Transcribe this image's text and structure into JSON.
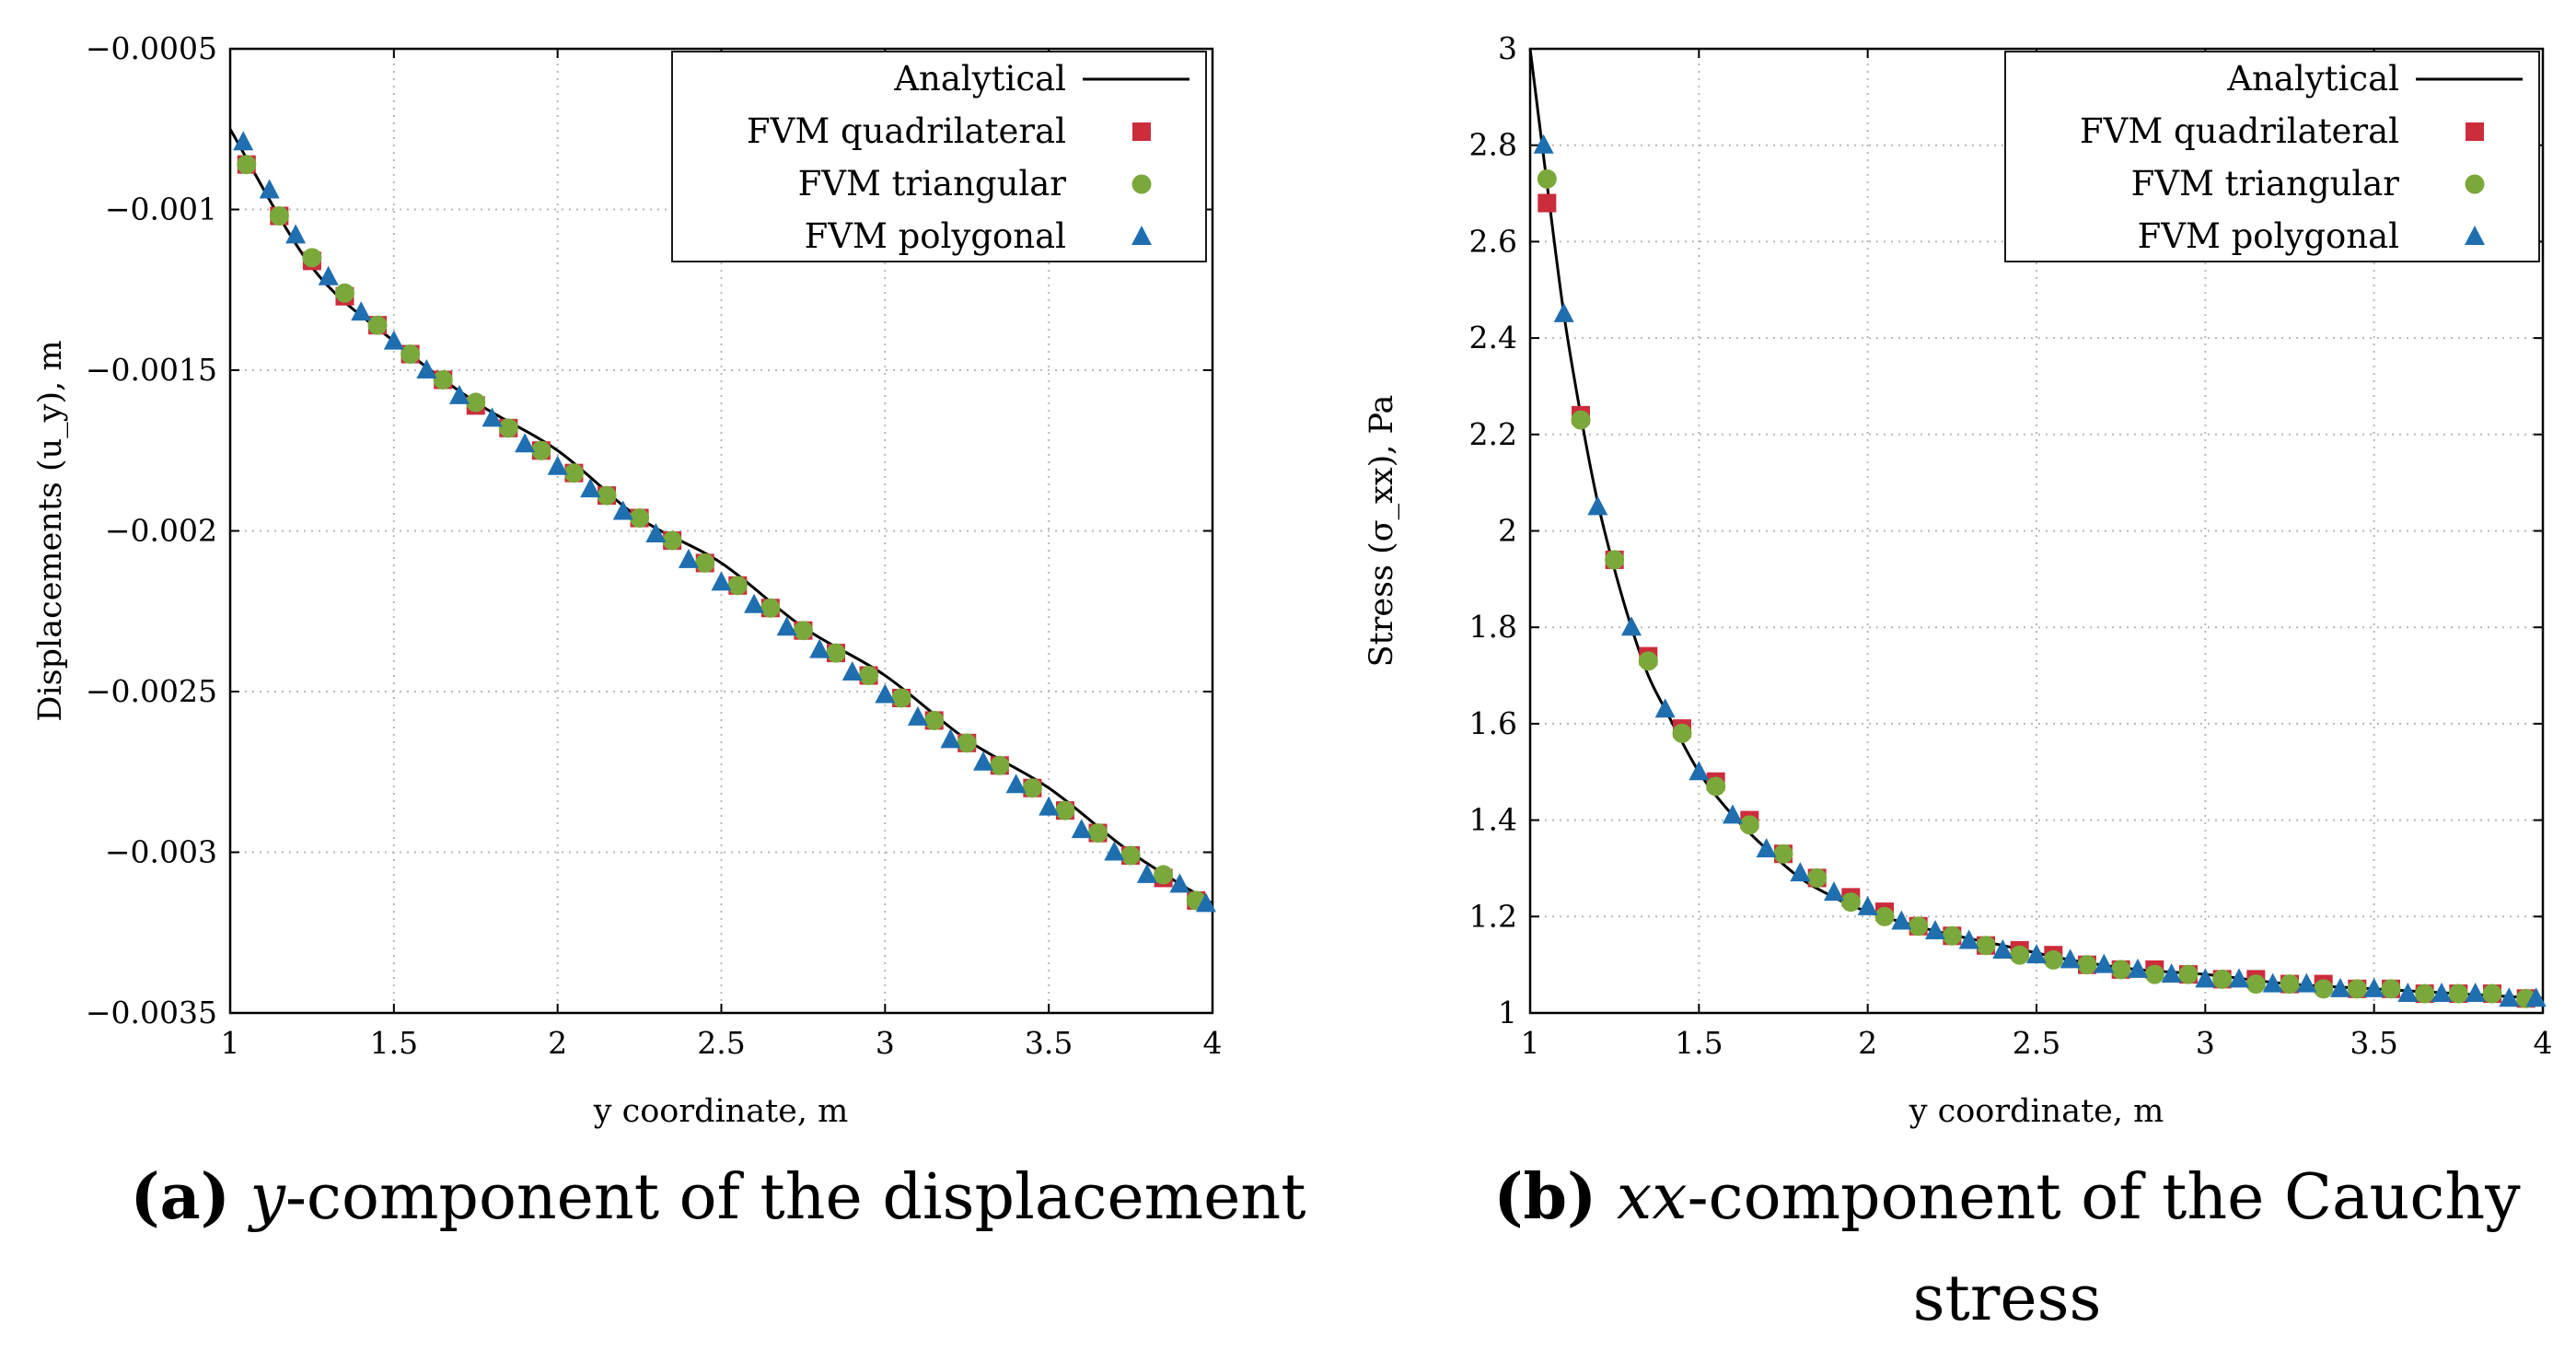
{
  "colors": {
    "analytical": "#000000",
    "quadrilateral": "#cc2c3c",
    "triangular": "#7aa83a",
    "polygonal": "#1f6fb0",
    "grid": "#b8b8b8"
  },
  "captions": {
    "a": {
      "label": "(a)",
      "italic": "y",
      "rest": "-component of the displacement"
    },
    "b": {
      "label": "(b)",
      "italic": "xx",
      "rest": "-component of the Cauchy",
      "line2": "stress"
    }
  },
  "chart_data": [
    {
      "id": "a",
      "type": "line+scatter",
      "title": "",
      "xlabel": "y coordinate, m",
      "ylabel": "Displacements (u_y), m",
      "xlim": [
        1,
        4
      ],
      "ylim": [
        -0.0035,
        -0.0005
      ],
      "xticks": [
        1,
        1.5,
        2,
        2.5,
        3,
        3.5,
        4
      ],
      "xtick_labels": [
        "1",
        "1.5",
        "2",
        "2.5",
        "3",
        "3.5",
        "4"
      ],
      "yticks": [
        -0.0005,
        -0.001,
        -0.0015,
        -0.002,
        -0.0025,
        -0.003,
        -0.0035
      ],
      "ytick_labels": [
        "−0.0005",
        "−0.001",
        "−0.0015",
        "−0.002",
        "−0.0025",
        "−0.003",
        "−0.0035"
      ],
      "grid": true,
      "legend": "top-right",
      "analytical": {
        "name": "Analytical",
        "x": [
          1,
          1.25,
          1.5,
          1.75,
          2,
          2.25,
          2.5,
          2.75,
          3,
          3.25,
          3.5,
          3.75,
          4
        ],
        "y": [
          -0.00075,
          -0.00118,
          -0.00141,
          -0.0016,
          -0.00175,
          -0.00196,
          -0.0021,
          -0.0023,
          -0.00245,
          -0.00265,
          -0.0028,
          -0.003,
          -0.00316
        ]
      },
      "series": [
        {
          "name": "FVM quadrilateral",
          "marker": "square",
          "x": [
            1.05,
            1.15,
            1.25,
            1.35,
            1.45,
            1.55,
            1.65,
            1.75,
            1.85,
            1.95,
            2.05,
            2.15,
            2.25,
            2.35,
            2.45,
            2.55,
            2.65,
            2.75,
            2.85,
            2.95,
            3.05,
            3.15,
            3.25,
            3.35,
            3.45,
            3.55,
            3.65,
            3.75,
            3.85,
            3.95
          ],
          "y": [
            -0.00086,
            -0.00102,
            -0.00116,
            -0.00127,
            -0.00136,
            -0.00145,
            -0.00153,
            -0.00161,
            -0.00168,
            -0.00175,
            -0.00182,
            -0.00189,
            -0.00196,
            -0.00203,
            -0.0021,
            -0.00217,
            -0.00224,
            -0.00231,
            -0.00238,
            -0.00245,
            -0.00252,
            -0.00259,
            -0.00266,
            -0.00273,
            -0.0028,
            -0.00287,
            -0.00294,
            -0.00301,
            -0.00308,
            -0.00315
          ]
        },
        {
          "name": "FVM triangular",
          "marker": "circle",
          "x": [
            1.05,
            1.15,
            1.25,
            1.35,
            1.45,
            1.55,
            1.65,
            1.75,
            1.85,
            1.95,
            2.05,
            2.15,
            2.25,
            2.35,
            2.45,
            2.55,
            2.65,
            2.75,
            2.85,
            2.95,
            3.05,
            3.15,
            3.25,
            3.35,
            3.45,
            3.55,
            3.65,
            3.75,
            3.85,
            3.95
          ],
          "y": [
            -0.00086,
            -0.00102,
            -0.00115,
            -0.00126,
            -0.00136,
            -0.00145,
            -0.00153,
            -0.0016,
            -0.00168,
            -0.00175,
            -0.00182,
            -0.00189,
            -0.00196,
            -0.00203,
            -0.0021,
            -0.00217,
            -0.00224,
            -0.00231,
            -0.00238,
            -0.00245,
            -0.00252,
            -0.00259,
            -0.00266,
            -0.00273,
            -0.0028,
            -0.00287,
            -0.00294,
            -0.00301,
            -0.00307,
            -0.00315
          ]
        },
        {
          "name": "FVM polygonal",
          "marker": "triangle",
          "x": [
            1.04,
            1.12,
            1.2,
            1.3,
            1.4,
            1.5,
            1.6,
            1.7,
            1.8,
            1.9,
            2.0,
            2.1,
            2.2,
            2.3,
            2.4,
            2.5,
            2.6,
            2.7,
            2.8,
            2.9,
            3.0,
            3.1,
            3.2,
            3.3,
            3.4,
            3.5,
            3.6,
            3.7,
            3.8,
            3.9,
            3.98
          ],
          "y": [
            -0.00079,
            -0.00094,
            -0.00108,
            -0.00121,
            -0.00132,
            -0.00141,
            -0.0015,
            -0.00158,
            -0.00165,
            -0.00173,
            -0.0018,
            -0.00187,
            -0.00194,
            -0.00201,
            -0.00209,
            -0.00216,
            -0.00223,
            -0.0023,
            -0.00237,
            -0.00244,
            -0.00251,
            -0.00258,
            -0.00265,
            -0.00272,
            -0.00279,
            -0.00286,
            -0.00293,
            -0.003,
            -0.00307,
            -0.0031,
            -0.00316
          ]
        }
      ]
    },
    {
      "id": "b",
      "type": "line+scatter",
      "title": "",
      "xlabel": "y coordinate, m",
      "ylabel": "Stress (σ_xx), Pa",
      "xlim": [
        1,
        4
      ],
      "ylim": [
        1,
        3
      ],
      "xticks": [
        1,
        1.5,
        2,
        2.5,
        3,
        3.5,
        4
      ],
      "xtick_labels": [
        "1",
        "1.5",
        "2",
        "2.5",
        "3",
        "3.5",
        "4"
      ],
      "yticks": [
        1,
        1.2,
        1.4,
        1.6,
        1.8,
        2,
        2.2,
        2.4,
        2.6,
        2.8,
        3
      ],
      "ytick_labels": [
        "1",
        "1.2",
        "1.4",
        "1.6",
        "1.8",
        "2",
        "2.2",
        "2.4",
        "2.6",
        "2.8",
        "3"
      ],
      "grid": true,
      "legend": "top-right",
      "analytical": {
        "name": "Analytical",
        "x": [
          1,
          1.05,
          1.1,
          1.15,
          1.2,
          1.25,
          1.3,
          1.35,
          1.4,
          1.5,
          1.6,
          1.7,
          1.8,
          1.9,
          2.0,
          2.2,
          2.4,
          2.6,
          2.8,
          3.0,
          3.25,
          3.5,
          3.75,
          4.0
        ],
        "y": [
          3.0,
          2.72,
          2.45,
          2.24,
          2.06,
          1.92,
          1.8,
          1.7,
          1.63,
          1.5,
          1.41,
          1.34,
          1.28,
          1.24,
          1.21,
          1.17,
          1.14,
          1.11,
          1.09,
          1.08,
          1.06,
          1.05,
          1.04,
          1.03
        ]
      },
      "series": [
        {
          "name": "FVM quadrilateral",
          "marker": "square",
          "x": [
            1.05,
            1.15,
            1.25,
            1.35,
            1.45,
            1.55,
            1.65,
            1.75,
            1.85,
            1.95,
            2.05,
            2.15,
            2.25,
            2.35,
            2.45,
            2.55,
            2.65,
            2.75,
            2.85,
            2.95,
            3.05,
            3.15,
            3.25,
            3.35,
            3.45,
            3.55,
            3.65,
            3.75,
            3.85,
            3.95
          ],
          "y": [
            2.68,
            2.24,
            1.94,
            1.74,
            1.59,
            1.48,
            1.4,
            1.33,
            1.28,
            1.24,
            1.21,
            1.18,
            1.16,
            1.14,
            1.13,
            1.12,
            1.1,
            1.09,
            1.09,
            1.08,
            1.07,
            1.07,
            1.06,
            1.06,
            1.05,
            1.05,
            1.04,
            1.04,
            1.04,
            1.03
          ]
        },
        {
          "name": "FVM triangular",
          "marker": "circle",
          "x": [
            1.05,
            1.15,
            1.25,
            1.35,
            1.45,
            1.55,
            1.65,
            1.75,
            1.85,
            1.95,
            2.05,
            2.15,
            2.25,
            2.35,
            2.45,
            2.55,
            2.65,
            2.75,
            2.85,
            2.95,
            3.05,
            3.15,
            3.25,
            3.35,
            3.45,
            3.55,
            3.65,
            3.75,
            3.85,
            3.95
          ],
          "y": [
            2.73,
            2.23,
            1.94,
            1.73,
            1.58,
            1.47,
            1.39,
            1.33,
            1.28,
            1.23,
            1.2,
            1.18,
            1.16,
            1.14,
            1.12,
            1.11,
            1.1,
            1.09,
            1.08,
            1.08,
            1.07,
            1.06,
            1.06,
            1.05,
            1.05,
            1.05,
            1.04,
            1.04,
            1.04,
            1.03
          ]
        },
        {
          "name": "FVM polygonal",
          "marker": "triangle",
          "x": [
            1.04,
            1.1,
            1.2,
            1.3,
            1.4,
            1.5,
            1.6,
            1.7,
            1.8,
            1.9,
            2.0,
            2.1,
            2.2,
            2.3,
            2.4,
            2.5,
            2.6,
            2.7,
            2.8,
            2.9,
            3.0,
            3.1,
            3.2,
            3.3,
            3.4,
            3.5,
            3.6,
            3.7,
            3.8,
            3.9,
            3.98
          ],
          "y": [
            2.8,
            2.45,
            2.05,
            1.8,
            1.63,
            1.5,
            1.41,
            1.34,
            1.29,
            1.25,
            1.22,
            1.19,
            1.17,
            1.15,
            1.13,
            1.12,
            1.11,
            1.1,
            1.09,
            1.08,
            1.07,
            1.07,
            1.06,
            1.06,
            1.05,
            1.05,
            1.04,
            1.04,
            1.04,
            1.03,
            1.03
          ]
        }
      ]
    }
  ]
}
